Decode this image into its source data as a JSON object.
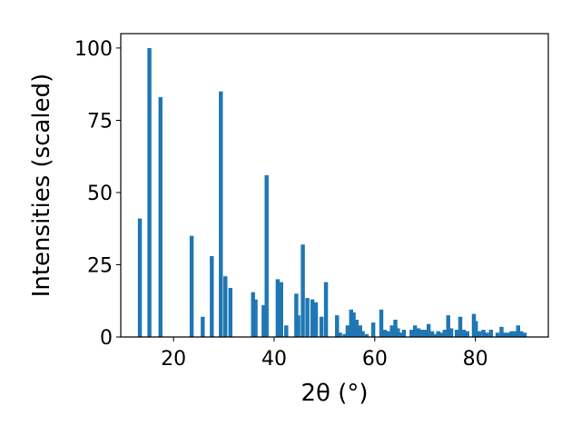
{
  "chart_data": {
    "type": "bar",
    "xlabel": "2θ (°)",
    "ylabel": "Intensities (scaled)",
    "xlim": [
      9.5,
      94.5
    ],
    "ylim": [
      0,
      105
    ],
    "xticks": [
      20,
      40,
      60,
      80
    ],
    "yticks": [
      0,
      25,
      50,
      75,
      100
    ],
    "bar_color": "#1f77b4",
    "grid": false,
    "x": [
      13.3,
      15.2,
      17.4,
      23.6,
      25.8,
      27.6,
      29.4,
      30.3,
      31.3,
      35.8,
      36.3,
      37.9,
      38.5,
      40.7,
      41.4,
      42.4,
      44.4,
      44.8,
      45.7,
      46.6,
      47.6,
      48.3,
      49.4,
      50.3,
      52.5,
      53.1,
      54.0,
      54.6,
      55.3,
      55.8,
      56.4,
      57.1,
      57.6,
      58.4,
      59.7,
      61.3,
      62.0,
      62.7,
      63.4,
      64.1,
      64.6,
      65.2,
      65.8,
      67.3,
      68.0,
      68.7,
      69.4,
      70.1,
      70.7,
      71.4,
      72.0,
      72.6,
      73.3,
      73.9,
      74.6,
      75.2,
      76.3,
      77.0,
      77.7,
      78.4,
      79.7,
      80.1,
      80.8,
      81.6,
      82.3,
      83.1,
      84.4,
      85.2,
      85.9,
      86.5,
      87.2,
      87.8,
      88.5,
      89.1,
      89.8
    ],
    "values": [
      41,
      100,
      83,
      35,
      7,
      28,
      85,
      21,
      17,
      15.5,
      13,
      11,
      56,
      20,
      19,
      4,
      15,
      7.5,
      32,
      13.5,
      13,
      12,
      7,
      19,
      7.5,
      1.5,
      1,
      4,
      9.5,
      8.5,
      6,
      4,
      2,
      1,
      5,
      9.5,
      2.5,
      2,
      4,
      6,
      3,
      1.5,
      2.5,
      2.5,
      4,
      3,
      2.5,
      2.5,
      4.5,
      2,
      1,
      2,
      1.5,
      2.5,
      7.5,
      3,
      2.5,
      7,
      2.5,
      2,
      8,
      5.5,
      2,
      2.5,
      1.5,
      2.5,
      1.5,
      3.5,
      1.5,
      1.5,
      2,
      2,
      4,
      2,
      1.5
    ]
  }
}
